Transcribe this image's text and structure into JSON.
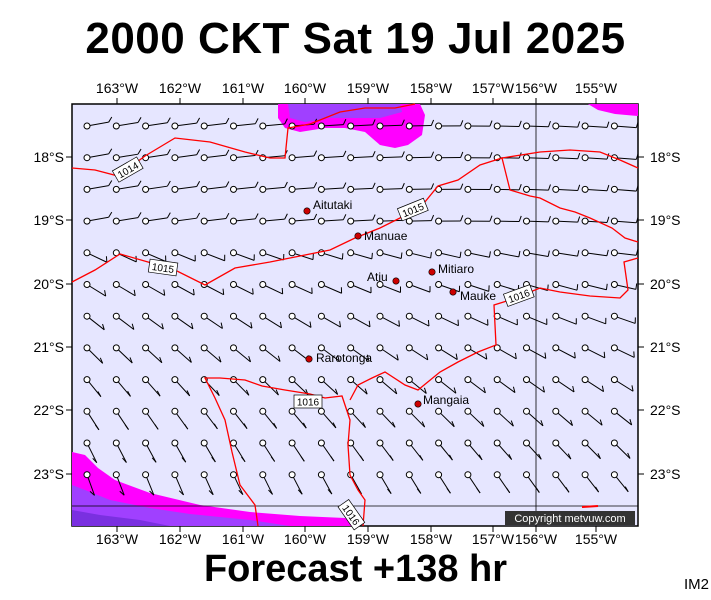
{
  "header": {
    "title": "2000 CKT Sat 19 Jul 2025"
  },
  "footer": {
    "forecast": "Forecast +138 hr",
    "code": "IM2"
  },
  "map": {
    "lon_labels": [
      "163°W",
      "162°W",
      "161°W",
      "160°W",
      "159°W",
      "158°W",
      "157°W",
      "156°W",
      "155°W"
    ],
    "lat_labels": [
      "18°S",
      "19°S",
      "20°S",
      "21°S",
      "22°S",
      "23°S"
    ],
    "copyright": "Copyright metvuw.com",
    "places": [
      "Aitutaki",
      "Manuae",
      "Mitiaro",
      "Atiu",
      "Mauke",
      "Rarotonga",
      "Mangaia"
    ],
    "isobar_labels": [
      "1014",
      "1015",
      "1015",
      "1016",
      "1016",
      "1016"
    ],
    "colors": {
      "background": "#e6e6ff",
      "isobar": "#ff0000",
      "rain_light": "#ff00ff",
      "rain_heavy": "#8a2be2",
      "island": "#cc0000"
    }
  }
}
